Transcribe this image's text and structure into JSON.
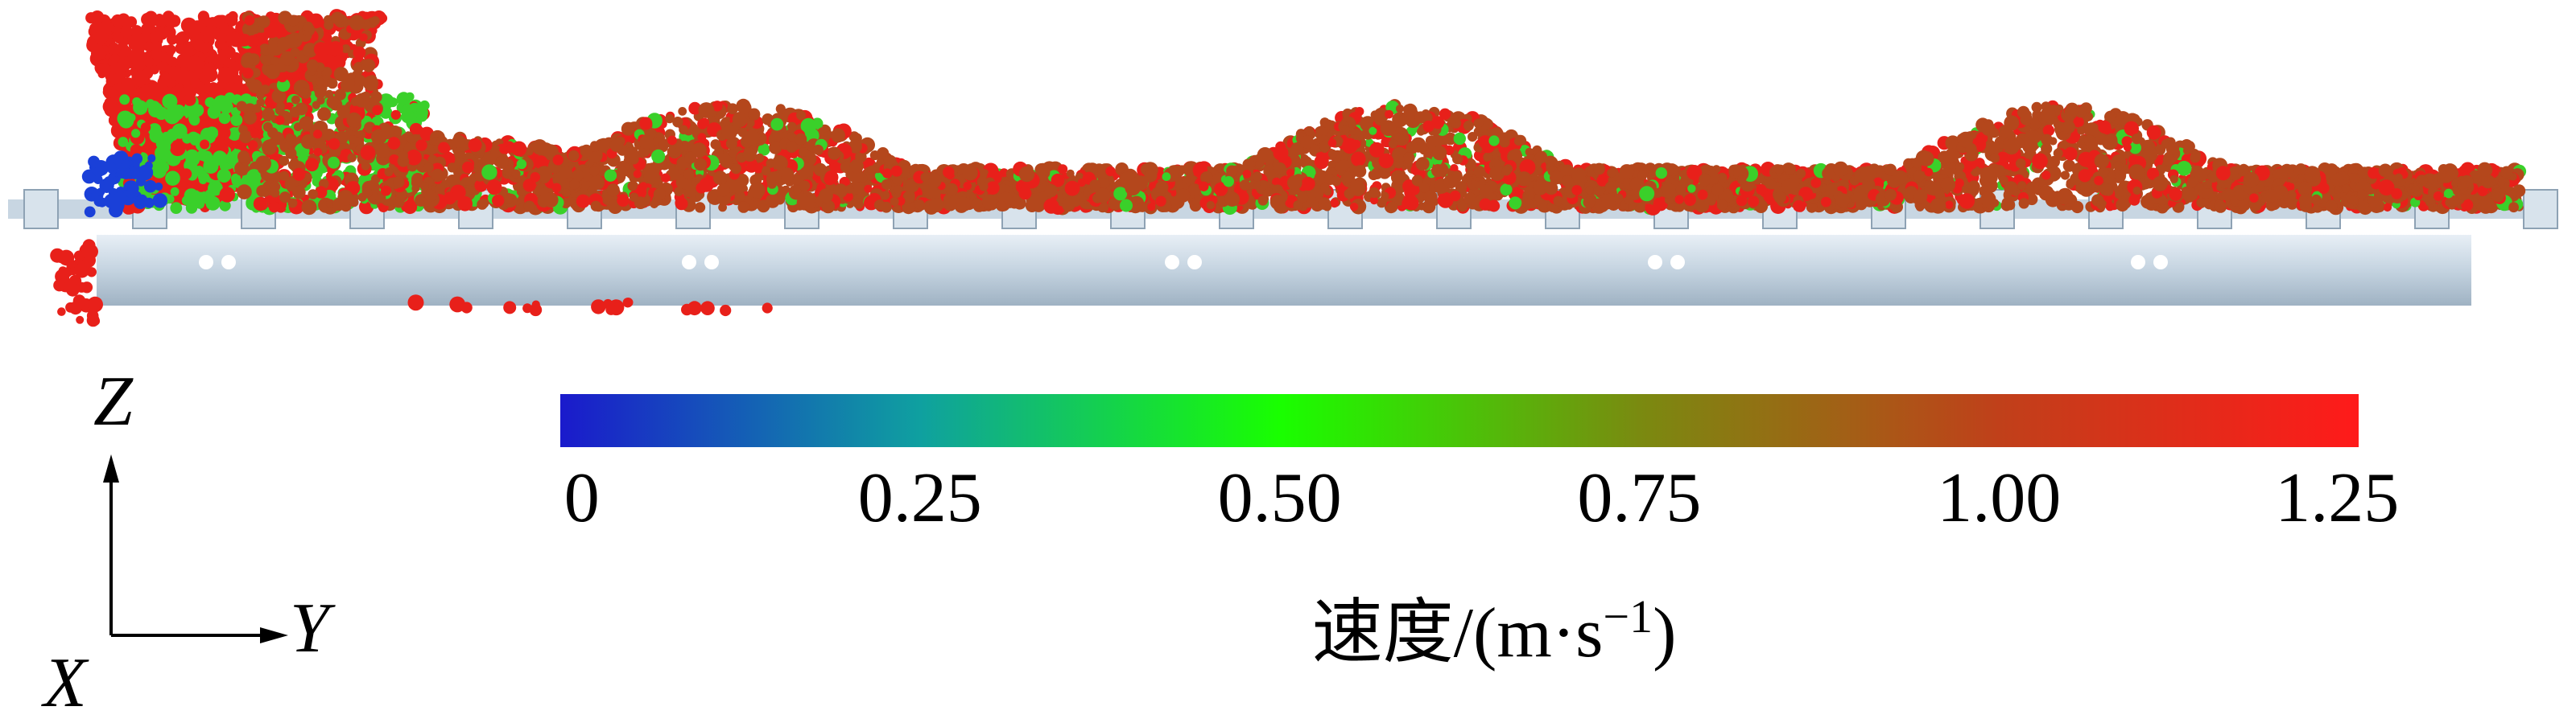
{
  "axes": {
    "z_label": "Z",
    "y_label": "Y",
    "x_label": "X"
  },
  "colorbar": {
    "title_prefix": "速度/(m·s",
    "title_exponent": "−1",
    "title_suffix": ")",
    "ticks": [
      "0",
      "0.25",
      "0.50",
      "0.75",
      "1.00",
      "1.25"
    ],
    "tick_values": [
      0,
      0.25,
      0.5,
      0.75,
      1.0,
      1.25
    ],
    "range": [
      0,
      1.25
    ],
    "colors": [
      "#1a1acc",
      "#0fa0a0",
      "#19ff00",
      "#7a8a10",
      "#c0401a",
      "#ff1a1a"
    ]
  },
  "scene": {
    "particle_colors": {
      "fast": "#e8201a",
      "mid": "#b4471c",
      "slow_green": "#3ad02a",
      "stopped": "#1a40d8"
    },
    "conveyor_color": "#b9cad8"
  }
}
